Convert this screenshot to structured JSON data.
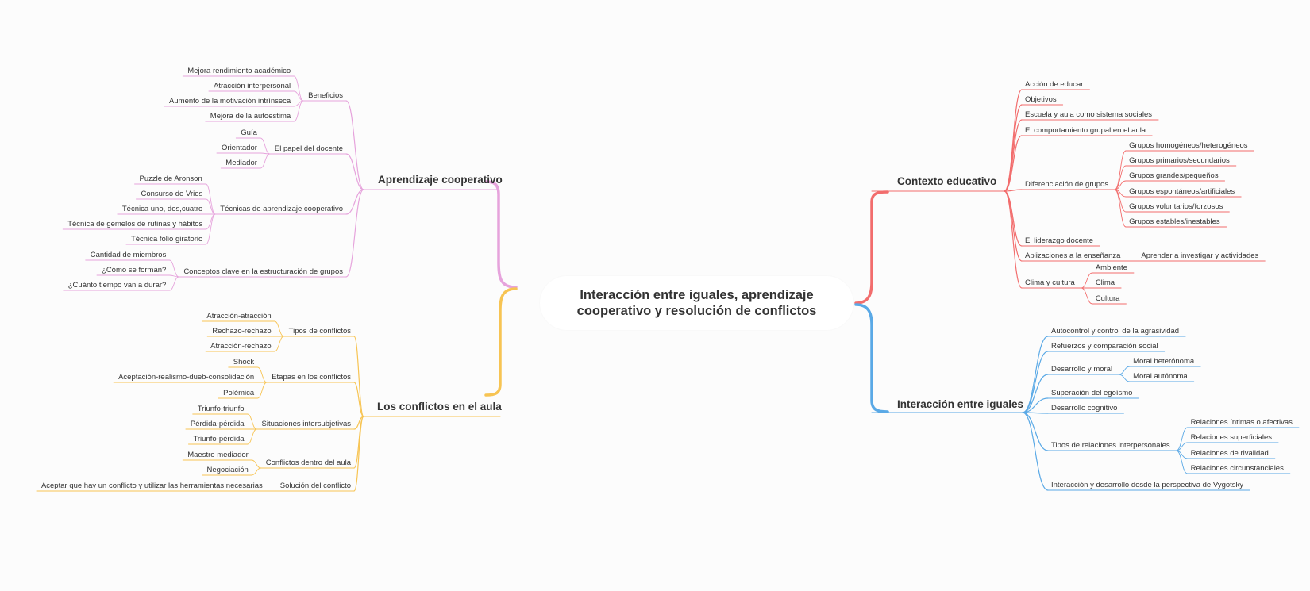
{
  "colors": {
    "aprendizaje": "#e6a3dc",
    "conflictos": "#f7c453",
    "contexto": "#f26d6d",
    "interaccion": "#5aa9e6"
  },
  "central": {
    "title": "Interacción entre iguales, aprendizaje cooperativo y resolución de conflictos"
  },
  "branches": {
    "aprendizaje": {
      "title": "Aprendizaje cooperativo",
      "beneficios": {
        "label": "Beneficios",
        "items": [
          "Mejora rendimiento académico",
          "Atracción interpersonal",
          "Aumento de la motivación intrínseca",
          "Mejora de la autoestima"
        ]
      },
      "docente": {
        "label": "El papel del docente",
        "items": [
          "Guía",
          "Orientador",
          "Mediador"
        ]
      },
      "tecnicas": {
        "label": "Técnicas de aprendizaje cooperativo",
        "items": [
          "Puzzle de Aronson",
          "Consurso de Vries",
          "Técnica uno, dos,cuatro",
          "Técnica de gemelos de rutinas y hábitos",
          "Técnica folio giratorio"
        ]
      },
      "conceptos": {
        "label": "Conceptos clave en la estructuración de grupos",
        "items": [
          "Cantidad de miembros",
          "¿Cómo se forman?",
          "¿Cuánto tiempo van a durar?"
        ]
      }
    },
    "conflictos": {
      "title": "Los conflictos en el aula",
      "tipos": {
        "label": "Tipos de conflictos",
        "items": [
          "Atracción-atracción",
          "Rechazo-rechazo",
          "Atracción-rechazo"
        ]
      },
      "etapas": {
        "label": "Etapas en los conflictos",
        "items": [
          "Shock",
          "Aceptación-realismo-dueb-consolidación",
          "Polémica"
        ]
      },
      "situaciones": {
        "label": "Situaciones intersubjetivas",
        "items": [
          "Triunfo-triunfo",
          "Pérdida-pérdida",
          "Triunfo-pérdida"
        ]
      },
      "dentro": {
        "label": "Conflictos dentro del aula",
        "items": [
          "Maestro mediador",
          "Negociación"
        ]
      },
      "solucion": {
        "label": "Solución del conflicto",
        "items": [
          "Aceptar que hay un conflicto y utilizar las herramientas necesarias"
        ]
      }
    },
    "contexto": {
      "title": "Contexto educativo",
      "accion": "Acción de educar",
      "objetivos": "Objetivos",
      "escuela": "Escuela y aula como sistema sociales",
      "comportamiento": "El comportamiento grupal en el aula",
      "diferenciacion": {
        "label": "Diferenciación de grupos",
        "items": [
          "Grupos homogéneos/heterogéneos",
          "Grupos primarios/secundarios",
          "Grupos grandes/pequeños",
          "Grupos espontáneos/artificiales",
          "Grupos voluntarios/forzosos",
          "Grupos estables/inestables"
        ]
      },
      "liderazgo": "El liderazgo docente",
      "aplicaciones": {
        "label": "Aplizaciones a la enseñanza",
        "items": [
          "Aprender a investigar y actividades"
        ]
      },
      "clima": {
        "label": "Clima y cultura",
        "items": [
          "Ambiente",
          "Clima",
          "Cultura"
        ]
      }
    },
    "interaccion": {
      "title": "Interacción entre iguales",
      "autocontrol": "Autocontrol y control de la agrasividad",
      "refuerzos": "Refuerzos y comparación social",
      "moral": {
        "label": "Desarrollo y moral",
        "items": [
          "Moral heterónoma",
          "Moral autónoma"
        ]
      },
      "egoismo": "Superación del egoísmo",
      "cognitivo": "Desarrollo cognitivo",
      "relaciones": {
        "label": "Tipos de relaciones interpersonales",
        "items": [
          "Relaciones íntimas o afectivas",
          "Relaciones superficiales",
          "Relaciones de rivalidad",
          "Relaciones circunstanciales"
        ]
      },
      "vygotsky": "Interacción y desarrollo desde la perspectiva de Vygotsky"
    }
  }
}
